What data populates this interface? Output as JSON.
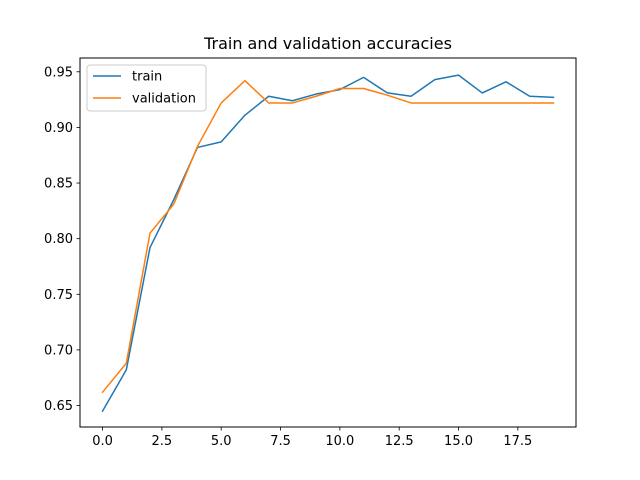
{
  "chart_data": {
    "type": "line",
    "title": "Train and validation accuracies",
    "xlabel": "",
    "ylabel": "",
    "x": [
      0,
      1,
      2,
      3,
      4,
      5,
      6,
      7,
      8,
      9,
      10,
      11,
      12,
      13,
      14,
      15,
      16,
      17,
      18,
      19
    ],
    "xlim": [
      -0.95,
      19.95
    ],
    "ylim": [
      0.6307,
      0.9624
    ],
    "xticks": [
      0.0,
      2.5,
      5.0,
      7.5,
      10.0,
      12.5,
      15.0,
      17.5
    ],
    "xtick_labels": [
      "0.0",
      "2.5",
      "5.0",
      "7.5",
      "10.0",
      "12.5",
      "15.0",
      "17.5"
    ],
    "yticks": [
      0.65,
      0.7,
      0.75,
      0.8,
      0.85,
      0.9,
      0.95
    ],
    "ytick_labels": [
      "0.65",
      "0.70",
      "0.75",
      "0.80",
      "0.85",
      "0.90",
      "0.95"
    ],
    "grid": false,
    "legend_position": "top-left",
    "series": [
      {
        "name": "train",
        "color": "#1f77b4",
        "values": [
          0.645,
          0.682,
          0.792,
          0.835,
          0.882,
          0.887,
          0.911,
          0.928,
          0.924,
          0.93,
          0.934,
          0.945,
          0.931,
          0.928,
          0.943,
          0.947,
          0.931,
          0.941,
          0.928,
          0.927
        ]
      },
      {
        "name": "validation",
        "color": "#ff7f0e",
        "values": [
          0.662,
          0.688,
          0.805,
          0.831,
          0.883,
          0.922,
          0.942,
          0.922,
          0.922,
          0.928,
          0.935,
          0.935,
          0.929,
          0.922,
          0.922,
          0.922,
          0.922,
          0.922,
          0.922,
          0.922
        ]
      }
    ]
  }
}
